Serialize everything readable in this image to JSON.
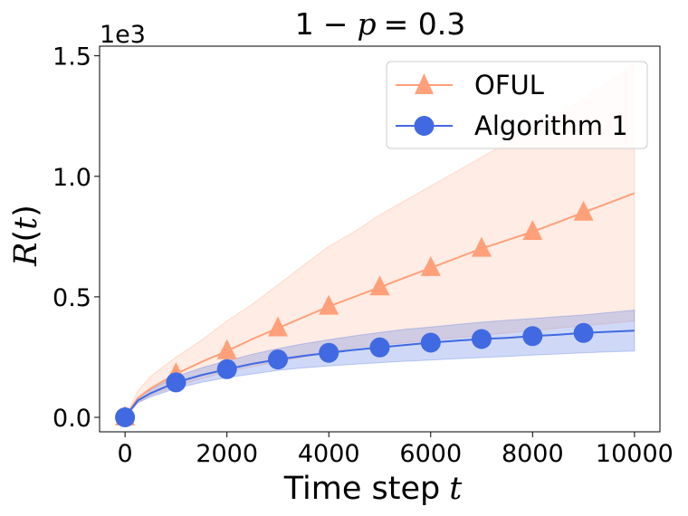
{
  "chart_data": {
    "type": "line",
    "title_parts": {
      "a": "1",
      "minus": "−",
      "p": "p",
      "eq": "= 0.3"
    },
    "title": "1 − p = 0.3",
    "xlabel": "Time step t",
    "xlabel_parts": {
      "text": "Time step",
      "var": "t"
    },
    "ylabel": "R(t)",
    "ylabel_parts": {
      "R": "R",
      "open": "(",
      "t": "t",
      "close": ")"
    },
    "y_offset_text": "1e3",
    "xlim": [
      -500,
      10500
    ],
    "ylim": [
      -0.06,
      1.54
    ],
    "x_ticks": [
      0,
      2000,
      4000,
      6000,
      8000,
      10000
    ],
    "x_tick_labels": [
      "0",
      "2000",
      "4000",
      "6000",
      "8000",
      "10000"
    ],
    "y_ticks": [
      0.0,
      0.5,
      1.0,
      1.5
    ],
    "y_tick_labels": [
      "0.0",
      "0.5",
      "1.0",
      "1.5"
    ],
    "legend_position": "top-right",
    "series": [
      {
        "name": "OFUL",
        "color": "#FFA07A",
        "marker": "triangle",
        "x": [
          0,
          250,
          500,
          1000,
          1500,
          2000,
          2500,
          3000,
          3500,
          4000,
          4500,
          5000,
          5500,
          6000,
          6500,
          7000,
          7500,
          8000,
          8500,
          9000,
          9500,
          10000
        ],
        "mean": [
          0.0,
          0.08,
          0.12,
          0.18,
          0.23,
          0.275,
          0.325,
          0.37,
          0.415,
          0.46,
          0.5,
          0.54,
          0.58,
          0.62,
          0.66,
          0.7,
          0.735,
          0.77,
          0.81,
          0.85,
          0.89,
          0.93
        ],
        "lower": [
          0.0,
          0.06,
          0.09,
          0.13,
          0.16,
          0.19,
          0.21,
          0.23,
          0.25,
          0.27,
          0.29,
          0.3,
          0.31,
          0.32,
          0.33,
          0.34,
          0.35,
          0.36,
          0.37,
          0.38,
          0.39,
          0.4
        ],
        "upper": [
          0.0,
          0.11,
          0.17,
          0.25,
          0.32,
          0.4,
          0.47,
          0.55,
          0.63,
          0.71,
          0.77,
          0.84,
          0.9,
          0.96,
          1.02,
          1.08,
          1.14,
          1.2,
          1.26,
          1.32,
          1.39,
          1.47
        ],
        "marker_x": [
          0,
          1000,
          2000,
          3000,
          4000,
          5000,
          6000,
          7000,
          8000,
          9000
        ],
        "marker_y": [
          0.0,
          0.18,
          0.275,
          0.37,
          0.46,
          0.54,
          0.62,
          0.7,
          0.77,
          0.85
        ]
      },
      {
        "name": "Algorithm 1",
        "color": "#4169E1",
        "marker": "circle",
        "x": [
          0,
          250,
          500,
          1000,
          1500,
          2000,
          2500,
          3000,
          3500,
          4000,
          4500,
          5000,
          5500,
          6000,
          6500,
          7000,
          7500,
          8000,
          8500,
          9000,
          9500,
          10000
        ],
        "mean": [
          0.0,
          0.07,
          0.1,
          0.145,
          0.175,
          0.2,
          0.222,
          0.24,
          0.255,
          0.268,
          0.28,
          0.29,
          0.3,
          0.31,
          0.318,
          0.325,
          0.33,
          0.337,
          0.343,
          0.35,
          0.355,
          0.36
        ],
        "lower": [
          0.0,
          0.06,
          0.085,
          0.12,
          0.145,
          0.165,
          0.18,
          0.195,
          0.205,
          0.213,
          0.22,
          0.227,
          0.233,
          0.238,
          0.243,
          0.248,
          0.253,
          0.258,
          0.263,
          0.268,
          0.272,
          0.275
        ],
        "upper": [
          0.0,
          0.08,
          0.115,
          0.17,
          0.205,
          0.235,
          0.262,
          0.285,
          0.305,
          0.322,
          0.338,
          0.352,
          0.365,
          0.375,
          0.385,
          0.395,
          0.403,
          0.41,
          0.418,
          0.425,
          0.435,
          0.445
        ],
        "marker_x": [
          0,
          1000,
          2000,
          3000,
          4000,
          5000,
          6000,
          7000,
          8000,
          9000
        ],
        "marker_y": [
          0.0,
          0.145,
          0.2,
          0.24,
          0.268,
          0.29,
          0.31,
          0.325,
          0.337,
          0.35
        ]
      }
    ]
  }
}
